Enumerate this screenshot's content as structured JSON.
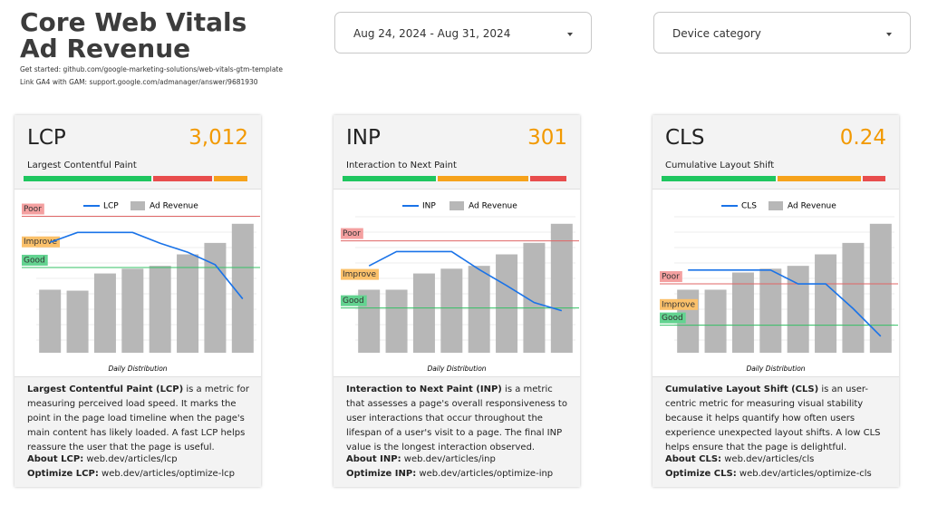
{
  "header": {
    "title": "Core Web Vitals Ad Revenue",
    "links": [
      "Get started: github.com/google-marketing-solutions/web-vitals-gtm-template",
      "Link GA4 with GAM: support.google.com/admanager/answer/9681930"
    ]
  },
  "controls": {
    "date_range": "Aug 24, 2024 - Aug 31, 2024",
    "device": "Device category"
  },
  "cards": [
    {
      "name": "LCP",
      "value": "3,012",
      "subtitle": "Largest Contentful Paint",
      "chart": {
        "type": "line-bar",
        "legend_line": "LCP",
        "legend_bars": "Ad Revenue",
        "caption": "Daily Distribution",
        "line_color": "#1a73e8",
        "bar_color": "#b7b7b7",
        "ylim": [
          0,
          4200
        ],
        "y2lim": [
          0,
          150
        ],
        "thresholds": [
          {
            "label": "Poor",
            "value": 4000,
            "color": "#e06666",
            "bg": "#f4a0a0"
          },
          {
            "label": "Improve",
            "bg": "#fbc16b"
          },
          {
            "label": "Good",
            "value": 2500,
            "color": "#34c065",
            "bg": "#63d390"
          }
        ],
        "line": [
          3237,
          3526,
          3526,
          3526,
          3210,
          2947,
          2580,
          1580
        ],
        "bars": [
          66,
          65,
          83,
          88,
          91,
          103,
          115,
          135
        ]
      },
      "description_bold": "Largest Contentful Paint (LCP)",
      "description": " is a metric for measuring perceived load speed. It marks the point in the page load timeline when the page's main content has likely loaded. A fast LCP helps reassure the user that the page is useful.",
      "links": [
        {
          "label": "About LCP:",
          "url": "web.dev/articles/lcp"
        },
        {
          "label": "Optimize LCP:",
          "url": "web.dev/articles/optimize-lcp"
        }
      ]
    },
    {
      "name": "INP",
      "value": "301",
      "subtitle": "Interaction to Next Paint",
      "chart": {
        "type": "line-bar",
        "legend_line": "INP",
        "legend_bars": "Ad Revenue",
        "caption": "Daily Distribution",
        "line_color": "#1a73e8",
        "bar_color": "#b7b7b7",
        "ylim": [
          0,
          640
        ],
        "y2lim": [
          0,
          150
        ],
        "thresholds": [
          {
            "label": "Poor",
            "value": 500,
            "color": "#e06666",
            "bg": "#f4a0a0"
          },
          {
            "label": "Improve",
            "bg": "#fbc16b"
          },
          {
            "label": "Good",
            "value": 200,
            "color": "#34c065",
            "bg": "#63d390"
          }
        ],
        "line": [
          388,
          452,
          452,
          452,
          372,
          300,
          224,
          188
        ],
        "bars": [
          66,
          66,
          83,
          88,
          91,
          103,
          115,
          135
        ]
      },
      "description_bold": "Interaction to Next Paint (INP)",
      "description": " is a metric that assesses a page's overall responsiveness to user interactions that occur throughout the lifespan of a user's visit to a page. The final INP value is the longest interaction observed.",
      "links": [
        {
          "label": "About INP:",
          "url": "web.dev/articles/inp"
        },
        {
          "label": "Optimize INP:",
          "url": "web.dev/articles/optimize-inp"
        }
      ]
    },
    {
      "name": "CLS",
      "value": "0.24",
      "subtitle": "Cumulative Layout Shift",
      "chart": {
        "type": "line-bar",
        "legend_line": "CLS",
        "legend_bars": "Ad Revenue",
        "caption": "Daily Distribution",
        "line_color": "#1a73e8",
        "bar_color": "#b7b7b7",
        "ylim": [
          0,
          0.52
        ],
        "y2lim": [
          0,
          150
        ],
        "thresholds": [
          {
            "label": "Poor",
            "value": 0.25,
            "color": "#e06666",
            "bg": "#f4a0a0"
          },
          {
            "label": "Improve",
            "bg": "#fbc16b"
          },
          {
            "label": "Good",
            "value": 0.1,
            "color": "#34c065",
            "bg": "#63d390"
          }
        ],
        "line": [
          0.3,
          0.3,
          0.3,
          0.3,
          0.25,
          0.25,
          0.16,
          0.06
        ],
        "bars": [
          66,
          66,
          84,
          88,
          91,
          103,
          115,
          135
        ]
      },
      "description_bold": "Cumulative Layout Shift (CLS)",
      "description": " is an user-centric metric for measuring visual stability because it helps quantify how often users experience unexpected layout shifts. A low CLS helps ensure that the page is delightful.",
      "links": [
        {
          "label": "About CLS:",
          "url": "web.dev/articles/cls"
        },
        {
          "label": "Optimize CLS:",
          "url": "web.dev/articles/optimize-cls"
        }
      ]
    }
  ]
}
